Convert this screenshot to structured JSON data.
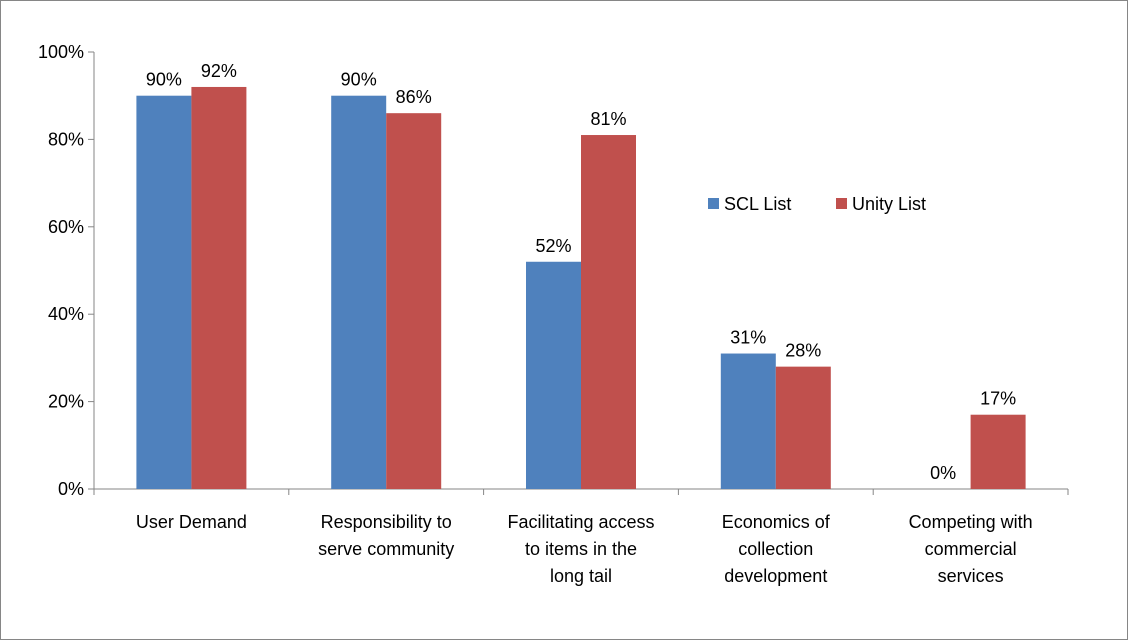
{
  "chart_data": {
    "type": "bar",
    "title": "",
    "xlabel": "",
    "ylabel": "",
    "ylim": [
      0,
      100
    ],
    "y_ticks": [
      "0%",
      "20%",
      "40%",
      "60%",
      "80%",
      "100%"
    ],
    "y_tick_values": [
      0,
      20,
      40,
      60,
      80,
      100
    ],
    "categories": [
      [
        "User Demand"
      ],
      [
        "Responsibility to",
        "serve community"
      ],
      [
        "Facilitating access",
        "to items in the",
        "long tail"
      ],
      [
        "Economics of",
        "collection",
        "development"
      ],
      [
        "Competing with",
        "commercial",
        "services"
      ]
    ],
    "series": [
      {
        "name": "SCL List",
        "color": "#4F81BD",
        "values": [
          90,
          90,
          52,
          31,
          0
        ],
        "labels": [
          "90%",
          "90%",
          "52%",
          "31%",
          "0%"
        ]
      },
      {
        "name": "Unity List",
        "color": "#C0504D",
        "values": [
          92,
          86,
          81,
          28,
          17
        ],
        "labels": [
          "92%",
          "86%",
          "81%",
          "28%",
          "17%"
        ]
      }
    ],
    "legend_position": "right",
    "grid": false
  }
}
